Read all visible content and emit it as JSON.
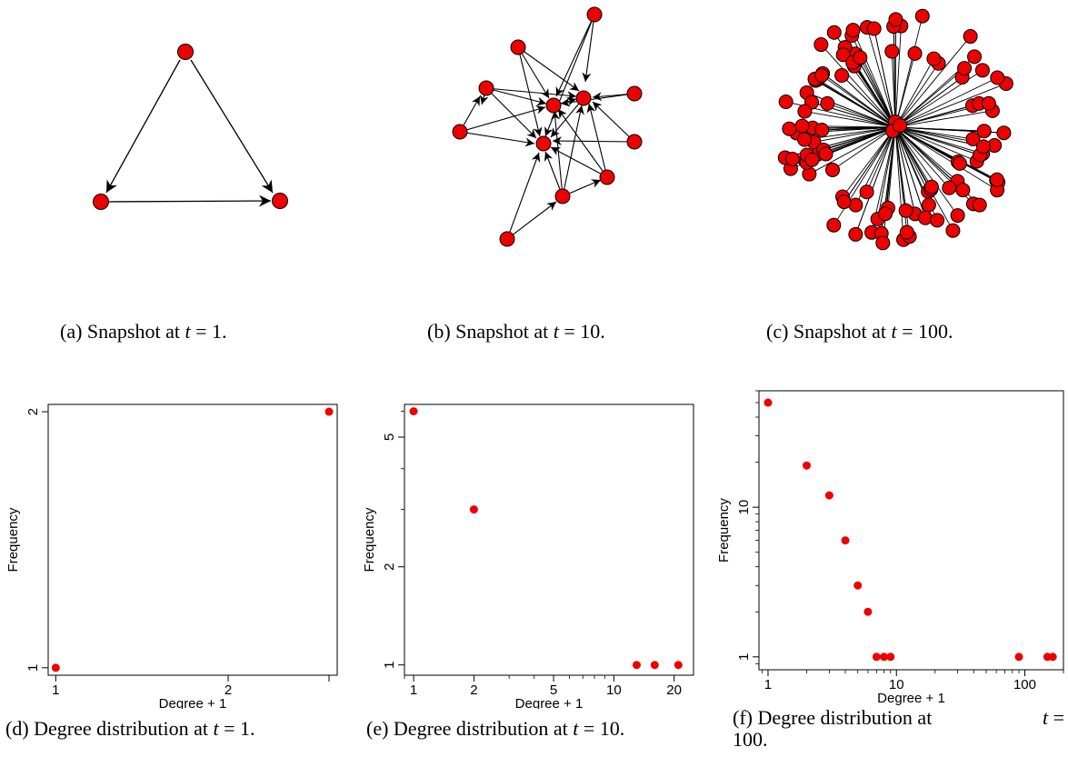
{
  "captions": {
    "a": {
      "prefix": "(a) Snapshot at ",
      "var": "t",
      "suffix": " = 1."
    },
    "b": {
      "prefix": "(b) Snapshot at ",
      "var": "t",
      "suffix": " = 10."
    },
    "c": {
      "prefix": "(c) Snapshot at ",
      "var": "t",
      "suffix": " = 100."
    },
    "d": {
      "prefix": "(d) Degree distribution at ",
      "var": "t",
      "suffix": " = 1."
    },
    "e": {
      "prefix": "(e) Degree distribution at ",
      "var": "t",
      "suffix": " = 10."
    },
    "f": {
      "prefix": "(f) Degree distribution at ",
      "var": "t",
      "suffix": " =",
      "line2": "100."
    }
  },
  "colors": {
    "node": "#ee0000",
    "edge": "#000000",
    "point": "#ee0000"
  },
  "chart_data": [
    {
      "type": "scatter",
      "title": "",
      "xlabel": "Degree + 1",
      "ylabel": "Frequency",
      "xscale": "log",
      "yscale": "log",
      "xlim": [
        0.97,
        3.1
      ],
      "ylim": [
        0.98,
        2.04
      ],
      "xticks": [
        {
          "v": 1,
          "label": "1"
        },
        {
          "v": 2,
          "label": "2"
        },
        {
          "v": 3,
          "label": ""
        }
      ],
      "yticks": [
        {
          "v": 1,
          "label": "1"
        },
        {
          "v": 2,
          "label": "2"
        }
      ],
      "points": [
        [
          1,
          1
        ],
        [
          3,
          2
        ]
      ]
    },
    {
      "type": "scatter",
      "title": "",
      "xlabel": "Degree + 1",
      "ylabel": "Frequency",
      "xscale": "log",
      "yscale": "log",
      "xlim": [
        0.9,
        25
      ],
      "ylim": [
        0.93,
        6.3
      ],
      "xticks": [
        {
          "v": 1,
          "label": "1"
        },
        {
          "v": 2,
          "label": "2"
        },
        {
          "v": 5,
          "label": "5"
        },
        {
          "v": 10,
          "label": "10"
        },
        {
          "v": 20,
          "label": "20"
        }
      ],
      "yticks": [
        {
          "v": 1,
          "label": "1"
        },
        {
          "v": 2,
          "label": "2"
        },
        {
          "v": 5,
          "label": "5"
        }
      ],
      "points": [
        [
          1,
          6
        ],
        [
          2,
          3
        ],
        [
          13,
          1
        ],
        [
          16,
          1
        ],
        [
          21,
          1
        ]
      ]
    },
    {
      "type": "scatter",
      "title": "",
      "xlabel": "Degree + 1",
      "ylabel": "Frequency",
      "xscale": "log",
      "yscale": "log",
      "xlim": [
        0.85,
        200
      ],
      "ylim": [
        0.82,
        60
      ],
      "xticks": [
        {
          "v": 1,
          "label": "1"
        },
        {
          "v": 10,
          "label": "10"
        },
        {
          "v": 100,
          "label": "100"
        }
      ],
      "yticks": [
        {
          "v": 1,
          "label": "1"
        },
        {
          "v": 10,
          "label": "10"
        }
      ],
      "points": [
        [
          1,
          50
        ],
        [
          2,
          19
        ],
        [
          3,
          12
        ],
        [
          4,
          6
        ],
        [
          5,
          3
        ],
        [
          6,
          2
        ],
        [
          7,
          1
        ],
        [
          8,
          1
        ],
        [
          9,
          1
        ],
        [
          90,
          1
        ],
        [
          150,
          1
        ],
        [
          165,
          1
        ]
      ]
    }
  ]
}
